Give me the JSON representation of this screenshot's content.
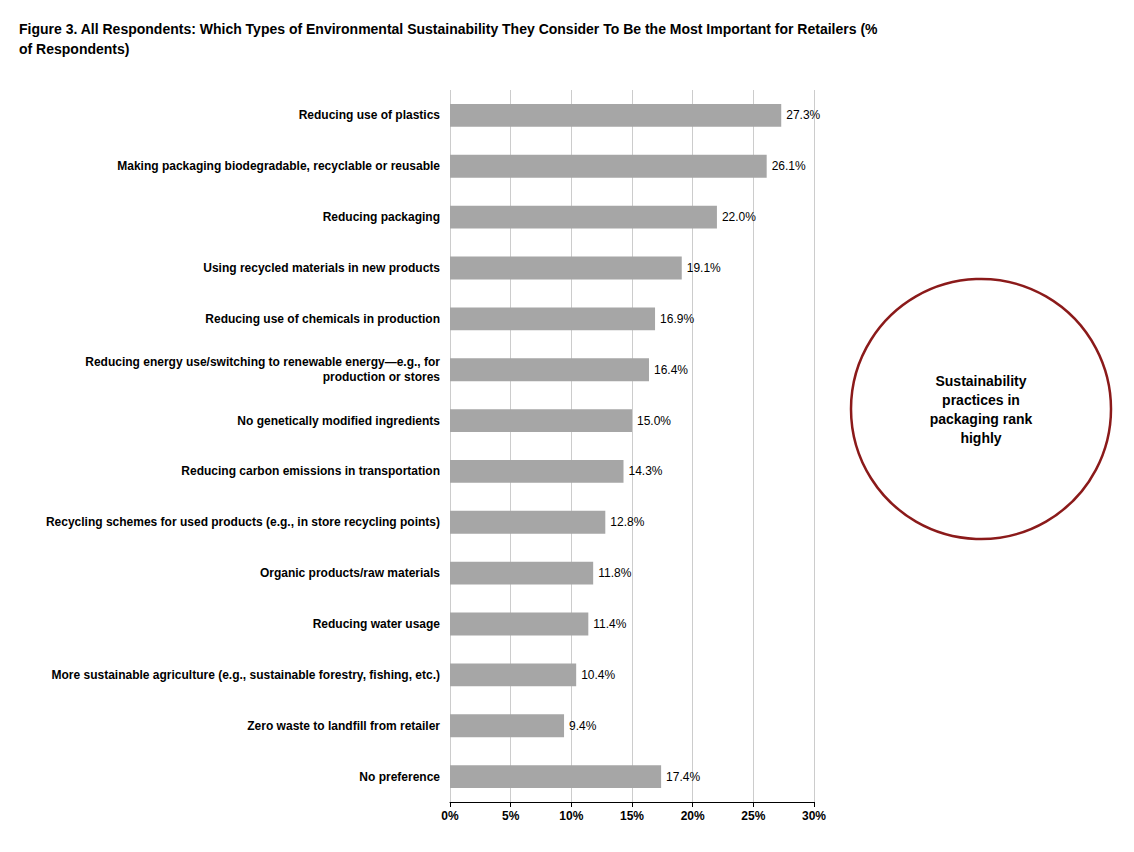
{
  "chart_data": {
    "type": "bar",
    "orientation": "horizontal",
    "title": "Figure 3. All Respondents: Which Types of Environmental Sustainability They Consider To Be the Most Important for Retailers (%\nof Respondents)",
    "categories": [
      "Reducing use of plastics",
      "Making packaging biodegradable, recyclable or reusable",
      "Reducing packaging",
      "Using recycled materials in new products",
      "Reducing use of chemicals in production",
      "Reducing energy use/switching to renewable energy—e.g., for\nproduction or stores",
      "No genetically modified ingredients",
      "Reducing carbon emissions in transportation",
      "Recycling schemes for used products (e.g., in store recycling points)",
      "Organic products/raw materials",
      "Reducing water usage",
      "More sustainable agriculture (e.g., sustainable forestry, fishing, etc.)",
      "Zero waste to landfill from retailer",
      "No preference"
    ],
    "values": [
      27.3,
      26.1,
      22.0,
      19.1,
      16.9,
      16.4,
      15.0,
      14.3,
      12.8,
      11.8,
      11.4,
      10.4,
      9.4,
      17.4
    ],
    "value_labels": [
      "27.3%",
      "26.1%",
      "22.0%",
      "19.1%",
      "16.9%",
      "16.4%",
      "15.0%",
      "14.3%",
      "12.8%",
      "11.8%",
      "11.4%",
      "10.4%",
      "9.4%",
      "17.4%"
    ],
    "data_labels": true,
    "color": "#a6a6a6",
    "xlim": [
      0,
      30
    ],
    "xticks": [
      {
        "value": 0,
        "label": "0%"
      },
      {
        "value": 5,
        "label": "5%"
      },
      {
        "value": 10,
        "label": "10%"
      },
      {
        "value": 15,
        "label": "15%"
      },
      {
        "value": 20,
        "label": "20%"
      },
      {
        "value": 25,
        "label": "25%"
      },
      {
        "value": 30,
        "label": "30%"
      }
    ],
    "grid": true,
    "annotations": [
      {
        "text": "Sustainability\npractices in\npackaging rank\nhighly",
        "color": "#8B1A1A"
      }
    ]
  }
}
